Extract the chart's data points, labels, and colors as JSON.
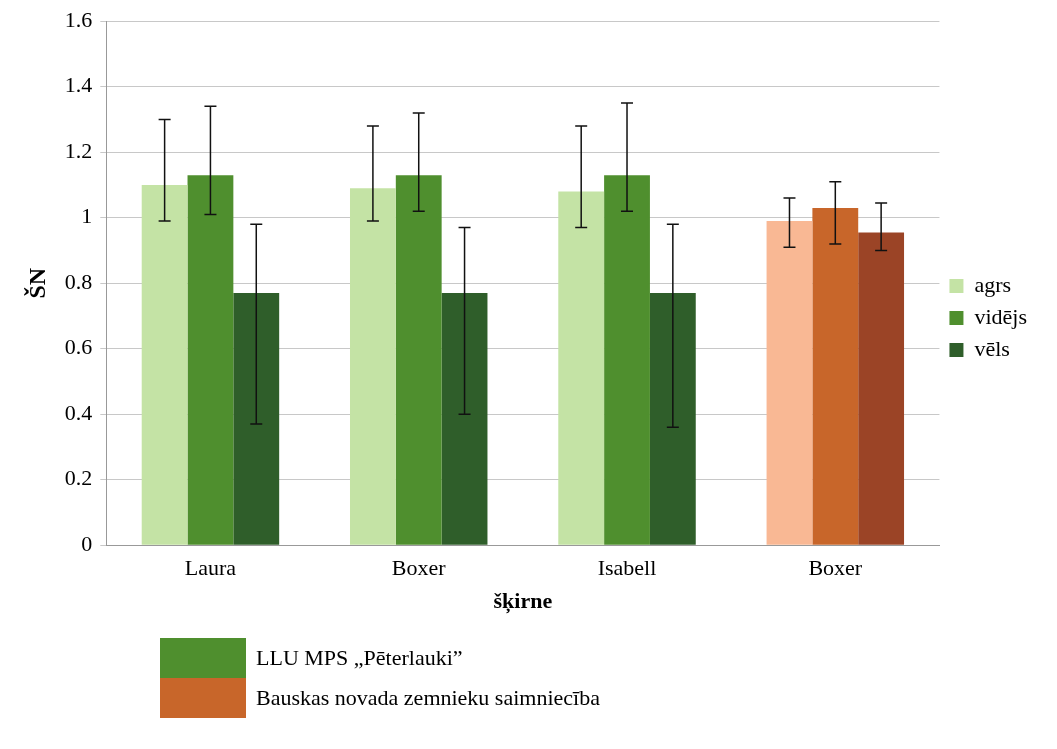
{
  "chart_data": {
    "type": "bar",
    "xlabel": "šķirne",
    "ylabel": "ŠN",
    "categories": [
      "Laura",
      "Boxer",
      "Isabell",
      "Boxer"
    ],
    "series": [
      {
        "name": "agrs",
        "colors": [
          "#c4e3a5",
          "#c4e3a5",
          "#c4e3a5",
          "#f9b894"
        ],
        "values": [
          1.1,
          1.09,
          1.08,
          0.99
        ],
        "errors": [
          [
            0.99,
            1.3
          ],
          [
            0.99,
            1.28
          ],
          [
            0.97,
            1.28
          ],
          [
            0.91,
            1.06
          ]
        ]
      },
      {
        "name": "vidējs",
        "colors": [
          "#4f8f2e",
          "#4f8f2e",
          "#4f8f2e",
          "#c8662a"
        ],
        "values": [
          1.13,
          1.13,
          1.13,
          1.03
        ],
        "errors": [
          [
            1.01,
            1.34
          ],
          [
            1.02,
            1.32
          ],
          [
            1.02,
            1.35
          ],
          [
            0.92,
            1.11
          ]
        ]
      },
      {
        "name": "vēls",
        "colors": [
          "#2f5e2a",
          "#2f5e2a",
          "#2f5e2a",
          "#9b4426"
        ],
        "values": [
          0.77,
          0.77,
          0.77,
          0.955
        ],
        "errors": [
          [
            0.37,
            0.98
          ],
          [
            0.4,
            0.97
          ],
          [
            0.36,
            0.98
          ],
          [
            0.9,
            1.045
          ]
        ]
      }
    ],
    "ylim": [
      0,
      1.6
    ],
    "yticks": [
      0,
      0.2,
      0.4,
      0.6,
      0.8,
      1,
      1.2,
      1.4,
      1.6
    ],
    "grid": "y",
    "legend": "right",
    "annotations": [
      "LLU MPS „Pēterlauki”",
      "Bauskas novada zemnieku saimniecība"
    ]
  }
}
